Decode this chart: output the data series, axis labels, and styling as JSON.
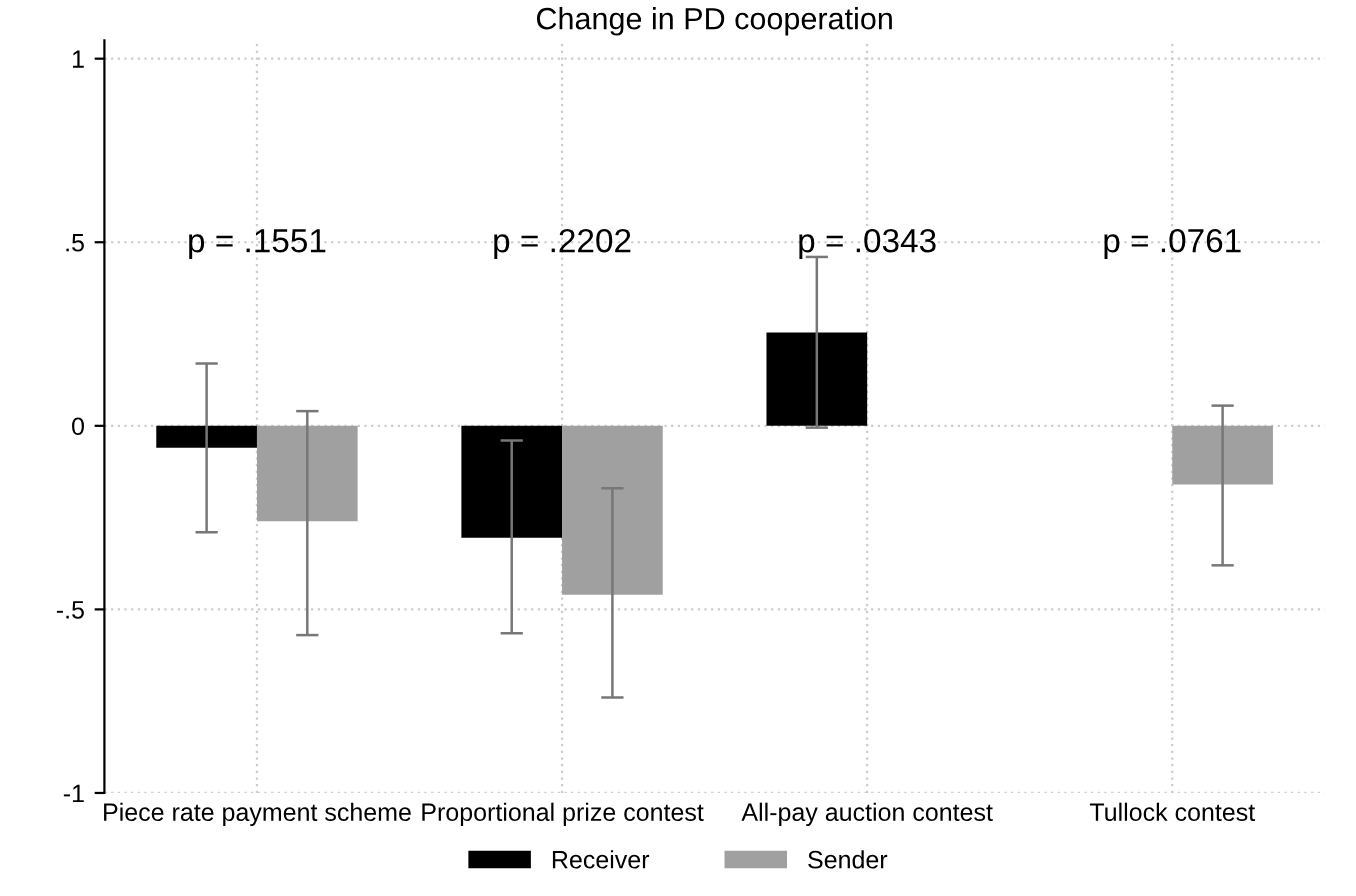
{
  "chart_data": {
    "type": "bar",
    "title": "Change in PD cooperation",
    "categories": [
      "Piece rate payment scheme",
      "Proportional prize contest",
      "All-pay auction contest",
      "Tullock contest"
    ],
    "series": [
      {
        "name": "Receiver",
        "color": "#000000",
        "values": [
          -0.06,
          -0.305,
          0.254,
          null
        ],
        "errors": [
          [
            -0.29,
            0.17
          ],
          [
            -0.565,
            -0.04
          ],
          [
            -0.005,
            0.46
          ],
          null
        ]
      },
      {
        "name": "Sender",
        "color": "#a0a0a0",
        "values": [
          -0.26,
          -0.46,
          null,
          -0.16
        ],
        "errors": [
          [
            -0.57,
            0.04
          ],
          [
            -0.74,
            -0.17
          ],
          null,
          [
            -0.38,
            0.055
          ]
        ]
      }
    ],
    "annotations": [
      "p = .1551",
      "p = .2202",
      "p = .0343",
      "p = .0761"
    ],
    "ylim": [
      -1,
      1.05
    ],
    "yticks": [
      {
        "value": -1,
        "label": "-1"
      },
      {
        "value": -0.5,
        "label": "-.5"
      },
      0,
      {
        "value": 0.5,
        "label": ".5"
      },
      1
    ],
    "grid": true,
    "legend": "bottom"
  }
}
